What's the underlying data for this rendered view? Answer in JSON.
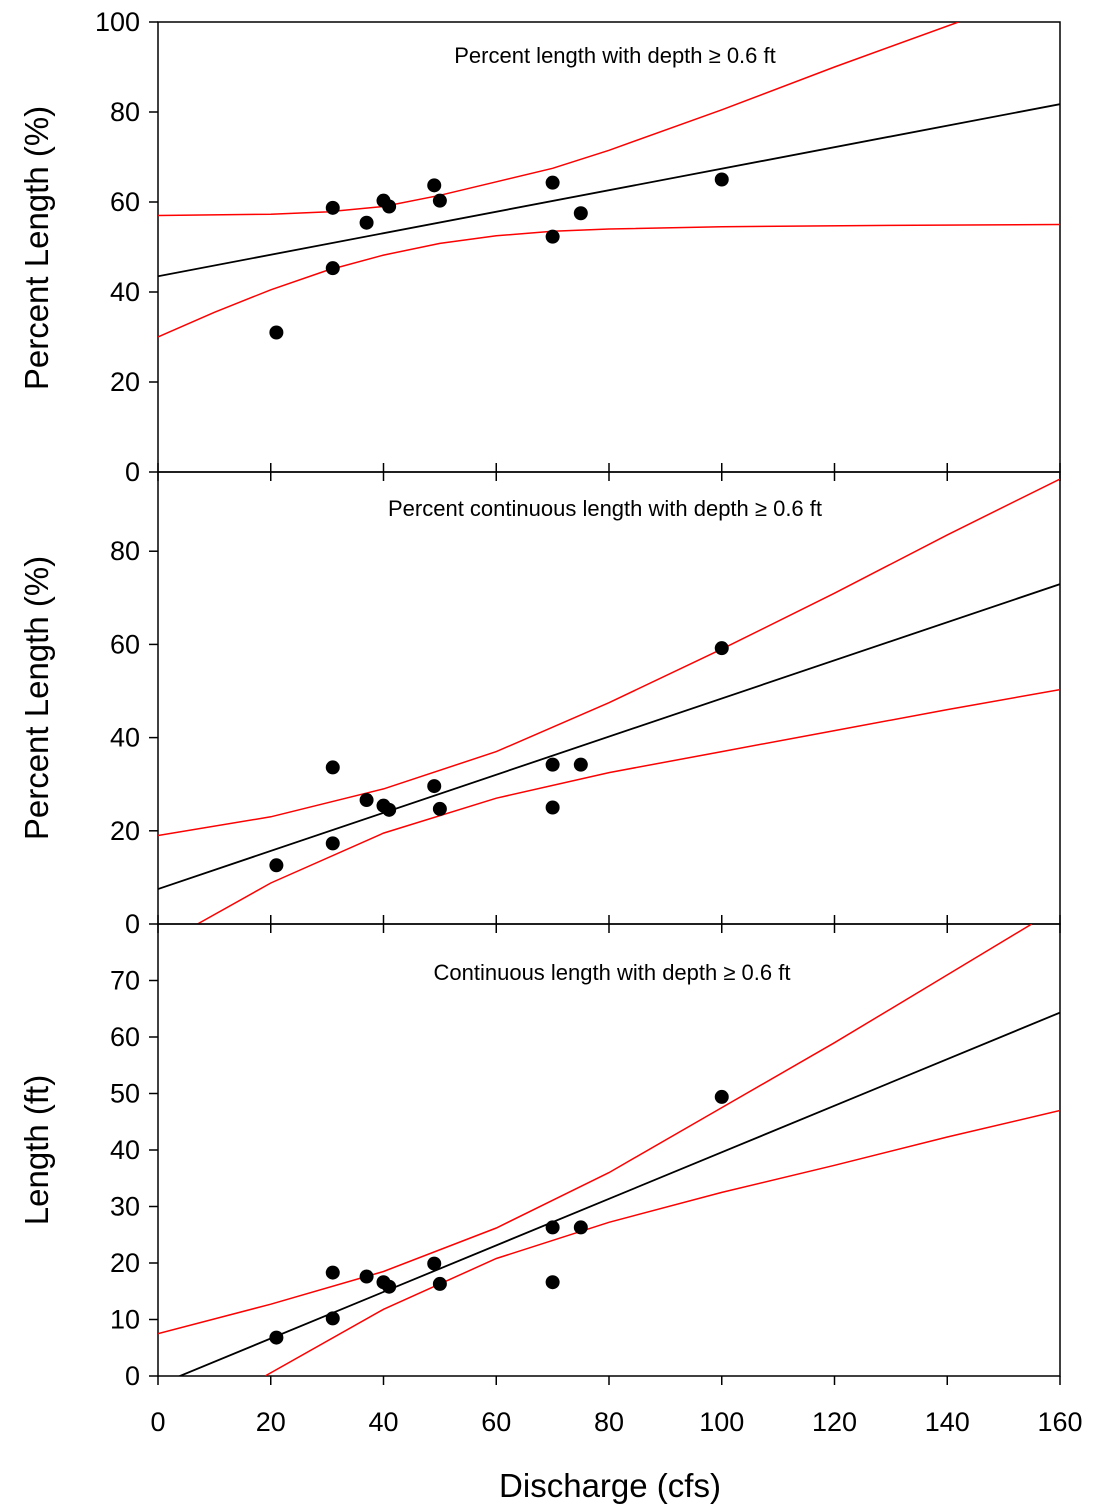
{
  "colors": {
    "fit": "#000000",
    "band": "#ff0000",
    "points": "#000000",
    "axes": "#000000"
  },
  "xlabel": "Discharge (cfs)",
  "xlim": [
    0,
    160
  ],
  "xticks": [
    0,
    20,
    40,
    60,
    80,
    100,
    120,
    140,
    160
  ],
  "chart_data": [
    {
      "type": "scatter",
      "title": "Percent length with depth ≥ 0.6 ft",
      "ylabel": "Percent Length (%)",
      "ylim": [
        0,
        100
      ],
      "yticks": [
        0,
        20,
        40,
        60,
        80,
        100
      ],
      "grid": false,
      "points": [
        [
          21,
          31
        ],
        [
          31,
          45.3
        ],
        [
          31,
          58.7
        ],
        [
          37,
          55.4
        ],
        [
          40,
          60.3
        ],
        [
          41,
          59
        ],
        [
          49,
          63.7
        ],
        [
          50,
          60.3
        ],
        [
          70,
          52.3
        ],
        [
          70,
          64.3
        ],
        [
          75,
          57.5
        ],
        [
          100,
          65
        ]
      ],
      "fit": {
        "intercept": 43.5,
        "slope": 0.239
      },
      "upper_band": [
        [
          0,
          57
        ],
        [
          20,
          57.3
        ],
        [
          30,
          57.8
        ],
        [
          40,
          59
        ],
        [
          50,
          61.5
        ],
        [
          60,
          64.5
        ],
        [
          70,
          67.5
        ],
        [
          80,
          71.5
        ],
        [
          100,
          80.5
        ],
        [
          120,
          90
        ],
        [
          142,
          100
        ]
      ],
      "lower_band": [
        [
          0,
          30
        ],
        [
          10,
          35.5
        ],
        [
          20,
          40.5
        ],
        [
          30,
          44.8
        ],
        [
          40,
          48.2
        ],
        [
          50,
          50.8
        ],
        [
          60,
          52.5
        ],
        [
          70,
          53.5
        ],
        [
          80,
          54
        ],
        [
          100,
          54.5
        ],
        [
          130,
          54.8
        ],
        [
          160,
          55
        ]
      ]
    },
    {
      "type": "scatter",
      "title": "Percent continuous length with depth ≥ 0.6 ft",
      "ylabel": "Percent Length (%)",
      "ylim": [
        0,
        97
      ],
      "yticks": [
        0,
        20,
        40,
        60,
        80
      ],
      "grid": false,
      "points": [
        [
          21,
          12.6
        ],
        [
          31,
          17.3
        ],
        [
          31,
          33.6
        ],
        [
          37,
          26.6
        ],
        [
          40,
          25.4
        ],
        [
          41,
          24.5
        ],
        [
          49,
          29.6
        ],
        [
          50,
          24.7
        ],
        [
          70,
          34.2
        ],
        [
          70,
          25
        ],
        [
          75,
          34.2
        ],
        [
          100,
          59.2
        ]
      ],
      "fit": {
        "intercept": 7.5,
        "slope": 0.409
      },
      "upper_band": [
        [
          0,
          19
        ],
        [
          20,
          23
        ],
        [
          40,
          29
        ],
        [
          60,
          37
        ],
        [
          80,
          47.5
        ],
        [
          100,
          59
        ],
        [
          120,
          71
        ],
        [
          140,
          83.5
        ],
        [
          160,
          95.5
        ]
      ],
      "lower_band": [
        [
          7,
          0
        ],
        [
          20,
          8.8
        ],
        [
          40,
          19.5
        ],
        [
          60,
          27
        ],
        [
          80,
          32.5
        ],
        [
          100,
          37
        ],
        [
          120,
          41.5
        ],
        [
          140,
          46
        ],
        [
          160,
          50.3
        ]
      ]
    },
    {
      "type": "scatter",
      "title": "Continuous length with depth ≥ 0.6 ft",
      "ylabel": "Length (ft)",
      "ylim": [
        0,
        80
      ],
      "yticks": [
        0,
        10,
        20,
        30,
        40,
        50,
        60,
        70
      ],
      "grid": false,
      "points": [
        [
          21,
          6.8
        ],
        [
          31,
          10.2
        ],
        [
          31,
          18.3
        ],
        [
          37,
          17.6
        ],
        [
          40,
          16.6
        ],
        [
          41,
          15.8
        ],
        [
          49,
          19.9
        ],
        [
          50,
          16.3
        ],
        [
          70,
          26.3
        ],
        [
          70,
          16.6
        ],
        [
          75,
          26.3
        ],
        [
          100,
          49.4
        ]
      ],
      "fit": {
        "intercept": -1.6,
        "slope": 0.412
      },
      "upper_band": [
        [
          0,
          7.5
        ],
        [
          20,
          12.7
        ],
        [
          40,
          18.5
        ],
        [
          60,
          26.2
        ],
        [
          80,
          36
        ],
        [
          100,
          47.5
        ],
        [
          120,
          59
        ],
        [
          140,
          71
        ],
        [
          155,
          80
        ]
      ],
      "lower_band": [
        [
          19,
          0
        ],
        [
          40,
          11.8
        ],
        [
          60,
          20.8
        ],
        [
          80,
          27.2
        ],
        [
          100,
          32.5
        ],
        [
          120,
          37.3
        ],
        [
          140,
          42.3
        ],
        [
          160,
          47
        ]
      ]
    }
  ]
}
